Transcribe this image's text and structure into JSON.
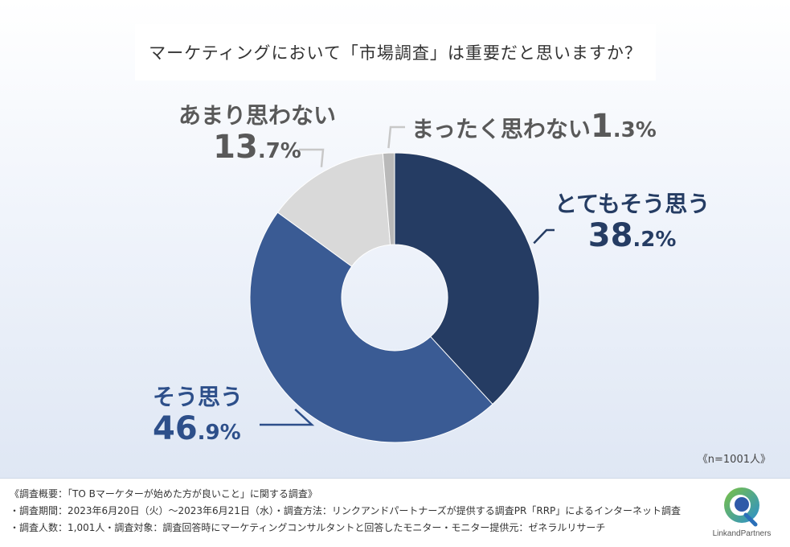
{
  "chart_data": {
    "type": "pie",
    "style": "donut",
    "title": "マーケティングにおいて「市場調査」は重要だと思いますか？",
    "start_angle_deg": 0,
    "direction": "clockwise",
    "slices": [
      {
        "label": "とてもそう思う",
        "value": 38.2,
        "value_main": "38",
        "value_frac": ".2%",
        "color": "#253c63"
      },
      {
        "label": "そう思う",
        "value": 46.9,
        "value_main": "46",
        "value_frac": ".9%",
        "color": "#3a5b94"
      },
      {
        "label": "あまり思わない",
        "value": 13.7,
        "value_main": "13",
        "value_frac": ".7%",
        "color": "#d9d9d9"
      },
      {
        "label": "まったく思わない",
        "value": 1.3,
        "value_main": "1",
        "value_frac": ".3%",
        "color": "#b9b9b9"
      }
    ],
    "sample_size": "《n=1001人》"
  },
  "footer": {
    "line1": "《調査概要：「TO Bマーケターが始めた方が良いこと」に関する調査》",
    "line2": "・調査期間：2023年6月20日（火）～2023年6月21日（水）・調査方法：リンクアンドパートナーズが提供する調査PR「RRP」によるインターネット調査",
    "line3": "・調査人数：1,001人・調査対象：調査回答時にマーケティングコンサルタントと回答したモニター・モニター提供元：ゼネラルリサーチ"
  },
  "logo": {
    "text": "LinkandPartners"
  }
}
